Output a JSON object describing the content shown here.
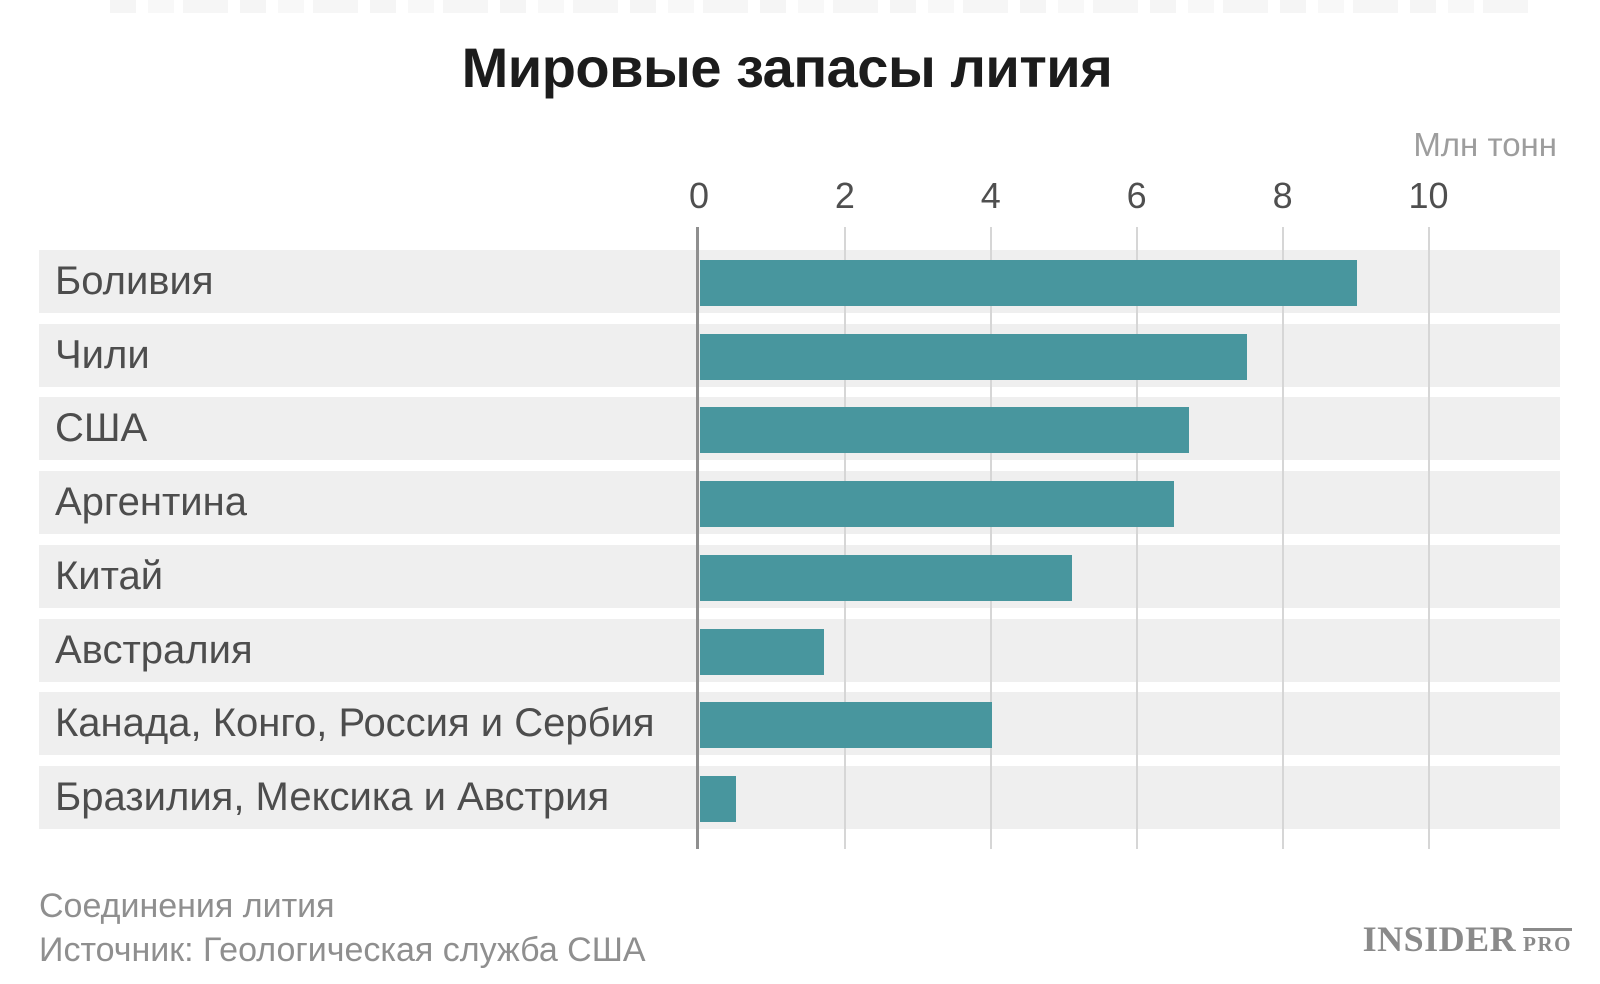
{
  "title": "Мировые запасы лития",
  "unit_label": "Млн тонн",
  "footer": {
    "line1": "Соединения лития",
    "line2": "Источник: Геологическая служба США"
  },
  "logo": {
    "main": "INSIDER",
    "sub": "PRO"
  },
  "colors": {
    "bar": "#48969e",
    "row_band": "#efefef",
    "axis_line": "#8f8f8f",
    "gridline": "#d6d6d6",
    "title_text": "#1c1c1c",
    "row_label_text": "#4d4d4d",
    "tick_text": "#4f4f4f",
    "muted_text": "#9d9d9d",
    "logo_text": "#8a8a8a"
  },
  "chart_data": {
    "type": "bar",
    "orientation": "horizontal",
    "title": "Мировые запасы лития",
    "xlabel": "Млн тонн",
    "ylabel": "",
    "categories": [
      "Боливия",
      "Чили",
      "США",
      "Аргентина",
      "Китай",
      "Австралия",
      "Канада, Конго, Россия и Сербия",
      "Бразилия, Мексика и Австрия"
    ],
    "values": [
      9.0,
      7.5,
      6.7,
      6.5,
      5.1,
      1.7,
      4.0,
      0.5
    ],
    "x_ticks": [
      0,
      2,
      4,
      6,
      8,
      10
    ],
    "xlim": [
      0,
      11.8
    ],
    "grid": true,
    "legend": "none",
    "source_note": "Источник: Геологическая служба США",
    "subject_note": "Соединения лития"
  }
}
